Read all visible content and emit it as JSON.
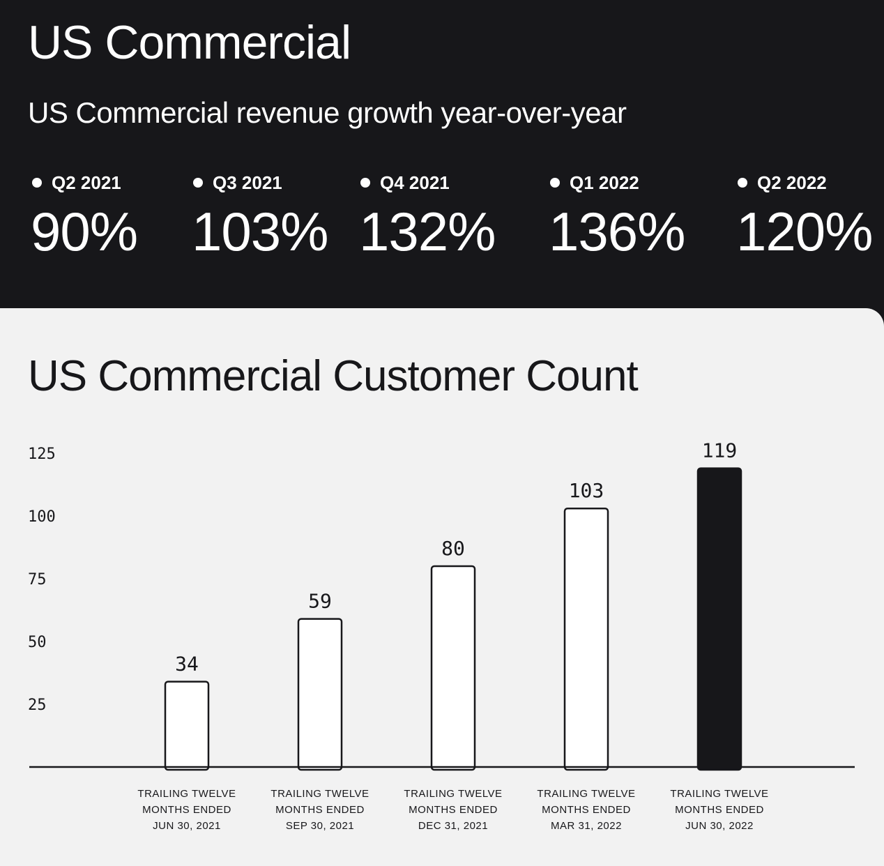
{
  "header": {
    "title": "US Commercial",
    "subtitle": "US Commercial revenue growth year-over-year"
  },
  "growth": [
    {
      "label": "Q2 2021",
      "value": "90%"
    },
    {
      "label": "Q3 2021",
      "value": "103%"
    },
    {
      "label": "Q4 2021",
      "value": "132%"
    },
    {
      "label": "Q1 2022",
      "value": "136%"
    },
    {
      "label": "Q2 2022",
      "value": "120%"
    }
  ],
  "colors": {
    "dark": "#17171a",
    "light": "#f2f2f2",
    "bar_outline": "#17171a",
    "bar_fill": "#ffffff",
    "bar_highlight": "#17171a"
  },
  "chart_data": {
    "type": "bar",
    "title": "US Commercial Customer Count",
    "xlabel": "",
    "ylabel": "",
    "ylim": [
      0,
      125
    ],
    "yticks": [
      25,
      50,
      75,
      100,
      125
    ],
    "grid": false,
    "categories": [
      [
        "TRAILING TWELVE",
        "MONTHS ENDED",
        "JUN 30, 2021"
      ],
      [
        "TRAILING TWELVE",
        "MONTHS ENDED",
        "SEP 30, 2021"
      ],
      [
        "TRAILING TWELVE",
        "MONTHS ENDED",
        "DEC 31, 2021"
      ],
      [
        "TRAILING TWELVE",
        "MONTHS ENDED",
        "MAR 31, 2022"
      ],
      [
        "TRAILING TWELVE",
        "MONTHS ENDED",
        "JUN 30, 2022"
      ]
    ],
    "values": [
      34,
      59,
      80,
      103,
      119
    ],
    "highlight_index": 4
  }
}
